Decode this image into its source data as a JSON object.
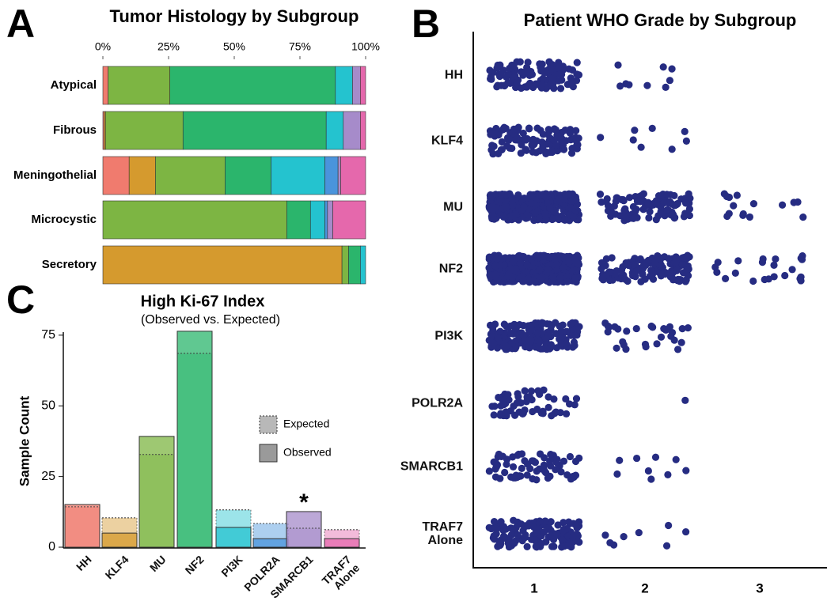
{
  "chart_data": [
    {
      "panel": "A",
      "type": "stacked_bar_h",
      "title": "Tumor Histology by Subgroup",
      "categories": [
        "Atypical",
        "Fibrous",
        "Meningothelial",
        "Microcystic",
        "Secretory"
      ],
      "series": [
        {
          "color": "#f07b6e",
          "values": [
            2,
            0.5,
            10,
            0,
            0
          ]
        },
        {
          "color": "#d59a2e",
          "values": [
            0,
            0.5,
            10,
            0,
            91
          ]
        },
        {
          "color": "#7db543",
          "values": [
            23.5,
            29.5,
            26.5,
            70,
            2.5
          ]
        },
        {
          "color": "#2bb56c",
          "values": [
            63,
            54.5,
            17.5,
            9,
            4.5
          ]
        },
        {
          "color": "#24c3cf",
          "values": [
            6.5,
            6.5,
            20.5,
            5.5,
            2
          ]
        },
        {
          "color": "#4a94dc",
          "values": [
            0,
            0,
            5,
            1,
            0
          ]
        },
        {
          "color": "#a68bca",
          "values": [
            3,
            6.5,
            1,
            2,
            0
          ]
        },
        {
          "color": "#e568ac",
          "values": [
            2,
            2,
            9.5,
            12.5,
            0
          ]
        }
      ],
      "xlim": [
        0,
        100
      ],
      "xticks": [
        {
          "value": 0,
          "label": "0%"
        },
        {
          "value": 25,
          "label": "25%"
        },
        {
          "value": 50,
          "label": "50%"
        },
        {
          "value": 75,
          "label": "75%"
        },
        {
          "value": 100,
          "label": "100%"
        }
      ]
    },
    {
      "panel": "B",
      "type": "strip",
      "title": "Patient WHO Grade by Subgroup",
      "categories": [
        "HH",
        "KLF4",
        "MU",
        "NF2",
        "PI3K",
        "POLR2A",
        "SMARCB1",
        "TRAF7 Alone"
      ],
      "x_categories": [
        "1",
        "2",
        "3"
      ],
      "color": "#262c82",
      "counts": [
        [
          120,
          9,
          0
        ],
        [
          110,
          8,
          0
        ],
        [
          400,
          110,
          15
        ],
        [
          450,
          130,
          22
        ],
        [
          160,
          28,
          0
        ],
        [
          55,
          1,
          0
        ],
        [
          70,
          9,
          0
        ],
        [
          140,
          8,
          0
        ]
      ]
    },
    {
      "panel": "C",
      "type": "bar_observed_expected",
      "title": "High Ki-67 Index",
      "subtitle": "(Observed vs. Expected)",
      "ylabel": "Sample Count",
      "categories": [
        "HH",
        "KLF4",
        "MU",
        "NF2",
        "PI3K",
        "POLR2A",
        "SMARCB1",
        "TRAF7 Alone"
      ],
      "colors": [
        "#f07b6e",
        "#d59a2e",
        "#7db543",
        "#2bb56c",
        "#24c3cf",
        "#4a94dc",
        "#a68bca",
        "#e568ac"
      ],
      "series": [
        {
          "name": "Expected",
          "values": [
            14.3,
            10.4,
            32.8,
            68.6,
            13.2,
            8.4,
            6.7,
            6.2
          ]
        },
        {
          "name": "Observed",
          "values": [
            15.1,
            5,
            39.2,
            76.4,
            7,
            3,
            12.6,
            3
          ]
        }
      ],
      "ylim": [
        0,
        80
      ],
      "yticks": [
        0,
        25,
        50,
        75
      ],
      "annotations": [
        {
          "text": "*",
          "category": "SMARCB1"
        }
      ]
    }
  ]
}
